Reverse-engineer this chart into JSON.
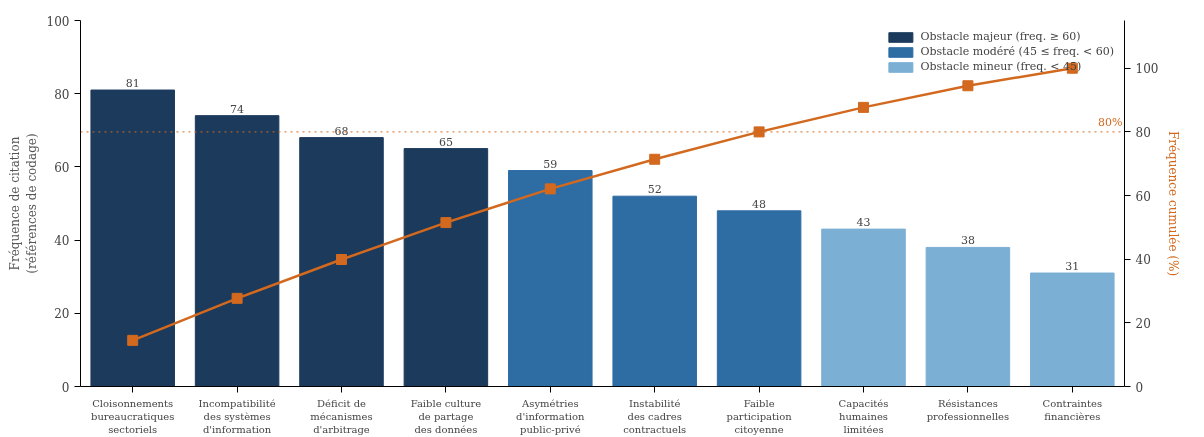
{
  "chart_data": {
    "type": "bar",
    "categories": [
      "Cloisonnements\nbureaucratiques\nsectoriels",
      "Incompatibilité\ndes systèmes\nd'information",
      "Déficit de\nmécanismes\nd'arbitrage",
      "Faible culture\nde partage\ndes données",
      "Asymétries\nd'information\npublic-privé",
      "Instabilité\ndes cadres\ncontractuels",
      "Faible\nparticipation\ncitoyenne",
      "Capacités\nhumaines\nlimitées",
      "Résistances\nprofessionnelles",
      "Contraintes\nfinancières"
    ],
    "series": [
      {
        "name": "Obstacle majeur (freq. ≥ 60)",
        "color": "#1b3a5c",
        "values": [
          81,
          74,
          68,
          65,
          null,
          null,
          null,
          null,
          null,
          null
        ],
        "value_labels": [
          "81",
          "74",
          "68",
          "65",
          null,
          null,
          null,
          null,
          null,
          null
        ]
      },
      {
        "name": "Obstacle modéré (45 ≤ freq. < 60)",
        "color": "#2e6ca4",
        "values": [
          null,
          null,
          null,
          null,
          59,
          52,
          48,
          null,
          null,
          null
        ],
        "value_labels": [
          null,
          null,
          null,
          null,
          "59",
          "52",
          "48",
          null,
          null,
          null
        ]
      },
      {
        "name": "Obstacle mineur (freq. < 45)",
        "color": "#7bafd4",
        "values": [
          null,
          null,
          null,
          null,
          null,
          null,
          null,
          43,
          38,
          31
        ],
        "value_labels": [
          null,
          null,
          null,
          null,
          null,
          null,
          null,
          "43",
          "38",
          "31"
        ]
      },
      {
        "type": "line",
        "axis": "y2",
        "color": "#d2691e",
        "marker": "square",
        "values": [
          14.5,
          27.7,
          39.9,
          51.5,
          62.1,
          71.4,
          80.0,
          87.7,
          94.5,
          100
        ]
      }
    ],
    "ylabel": "Fréquence de citation\n(références de codage)",
    "y2label": "Fréquence cumulée (%)",
    "ylim": [
      0,
      100
    ],
    "yticks": [
      0,
      20,
      40,
      60,
      80,
      100
    ],
    "y2lim": [
      0,
      115
    ],
    "y2ticks": [
      0,
      20,
      40,
      60,
      80,
      100
    ],
    "ref_lines": [
      {
        "axis": "y2",
        "value": 80,
        "label": "80%",
        "color": "#d2691e",
        "line_style": "dotted"
      }
    ],
    "legend": "top right",
    "grid": false
  }
}
